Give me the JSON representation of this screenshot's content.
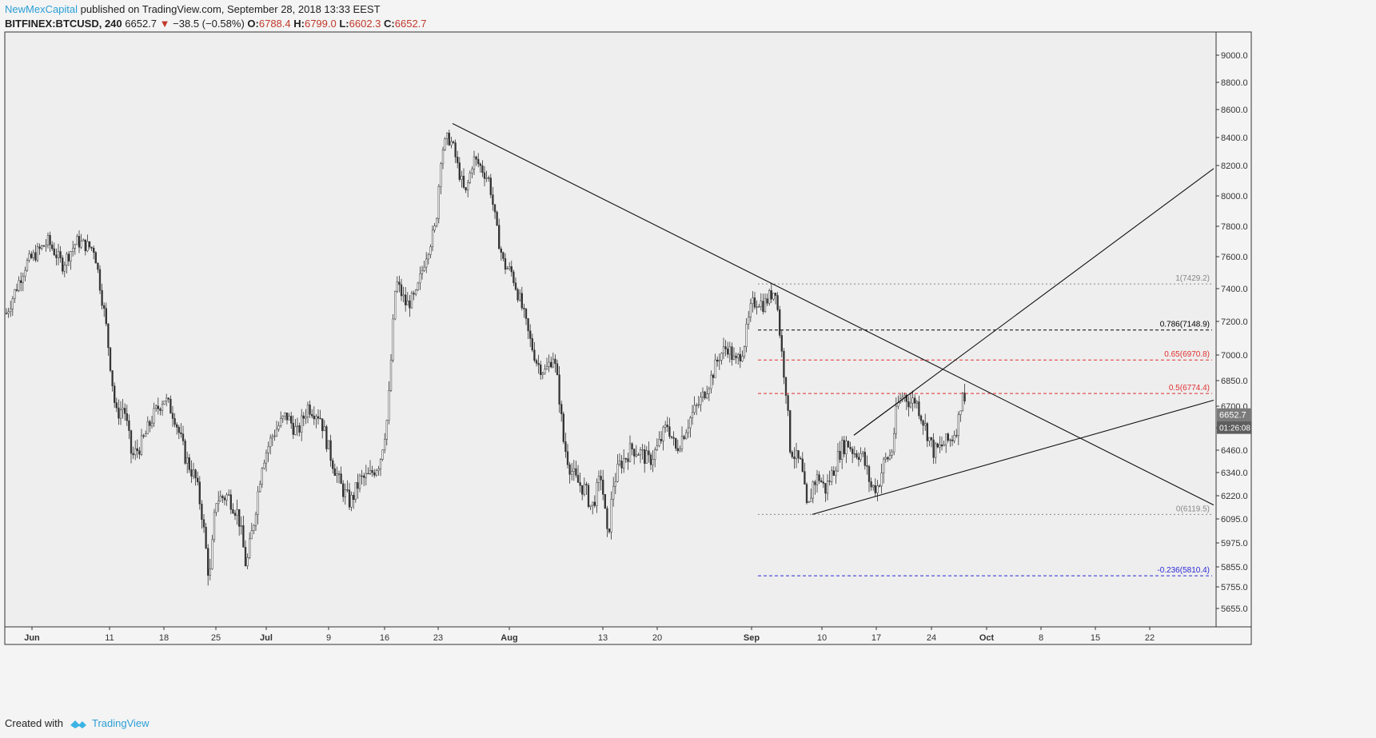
{
  "header": {
    "author": "NewMexCapital",
    "published": "published on TradingView.com, September 28, 2018 13:33 EEST",
    "symbol": "BITFINEX:BTCUSD, 240",
    "last": "6652.7",
    "down_icon": "triangle-down-icon",
    "change": "−38.5 (−0.58%)",
    "o_label": "O:",
    "o_val": "6788.4",
    "h_label": "H:",
    "h_val": "6799.0",
    "l_label": "L:",
    "l_val": "6602.3",
    "c_label": "C:",
    "c_val": "6652.7"
  },
  "footer": {
    "created": "Created with",
    "brand": "TradingView",
    "logo_icon": "tradingview-logo-icon"
  },
  "colors": {
    "bg": "#eeeeee",
    "candle": "#333333",
    "fib_red": "#e03030",
    "fib_blue": "#2a2ad8",
    "fib_gray": "#888888",
    "fib_black": "#000000",
    "price_box": "#7b7b7b"
  },
  "chart_data": {
    "type": "candlestick",
    "x_ticks": [
      "Jun",
      "11",
      "18",
      "25",
      "Jul",
      "9",
      "16",
      "23",
      "Aug",
      "13",
      "20",
      "Sep",
      "10",
      "17",
      "24",
      "Oct",
      "8",
      "15",
      "22"
    ],
    "y_ticks": [
      "9000.0",
      "8800.0",
      "8600.0",
      "8400.0",
      "8200.0",
      "8000.0",
      "7800.0",
      "7600.0",
      "7400.0",
      "7200.0",
      "7000.0",
      "6850.0",
      "6700.0",
      "6580.0",
      "6460.0",
      "6340.0",
      "6220.0",
      "6095.0",
      "5975.0",
      "5855.0",
      "5755.0",
      "5655.0"
    ],
    "last_price": "6652.7",
    "countdown": "01:26:08",
    "series": [
      {
        "path_x": [
          0,
          8,
          32,
          60,
          78,
          96,
          118,
          132,
          145,
          155,
          165,
          178,
          190,
          205,
          218,
          232,
          245,
          252,
          262,
          270,
          285,
          298,
          308,
          318,
          328,
          342,
          358,
          372,
          385,
          400,
          412,
          425,
          438,
          450,
          462,
          475,
          485,
          495,
          508,
          520,
          532,
          545,
          552,
          560,
          566,
          572,
          582,
          592,
          600,
          612,
          622,
          630,
          640,
          652,
          662,
          672,
          682,
          692,
          698,
          705,
          712,
          720,
          732,
          740,
          752,
          760,
          767,
          775,
          790,
          800,
          812,
          822,
          835,
          845,
          855,
          865,
          875,
          888,
          900,
          910,
          920,
          930,
          940,
          948,
          955,
          962,
          970,
          978,
          983,
          988,
          995,
          1002,
          1010,
          1016,
          1024,
          1032,
          1042,
          1052,
          1060,
          1068,
          1078,
          1090,
          1098,
          1106,
          1115,
          1122,
          1130,
          1138,
          1145,
          1152,
          1160,
          1168,
          1175,
          1182,
          1190,
          1198,
          1204,
          1208
        ],
        "close": [
          7000,
          7250,
          7550,
          7700,
          7550,
          7700,
          7650,
          7200,
          6650,
          6700,
          6420,
          6500,
          6630,
          6750,
          6650,
          6420,
          6300,
          6140,
          5780,
          6200,
          6220,
          6120,
          5850,
          6100,
          6400,
          6550,
          6650,
          6550,
          6700,
          6650,
          6450,
          6280,
          6180,
          6300,
          6320,
          6400,
          6650,
          7450,
          7300,
          7350,
          7600,
          7800,
          8300,
          8400,
          8350,
          8200,
          8000,
          8250,
          8200,
          8100,
          7750,
          7550,
          7500,
          7300,
          7100,
          6950,
          6900,
          7000,
          6820,
          6500,
          6380,
          6300,
          6250,
          6150,
          6330,
          5980,
          6280,
          6380,
          6470,
          6450,
          6400,
          6470,
          6600,
          6460,
          6550,
          6650,
          6720,
          6850,
          7000,
          7050,
          6950,
          7050,
          7300,
          7330,
          7300,
          7350,
          7400,
          7000,
          6800,
          6480,
          6420,
          6380,
          6120,
          6280,
          6320,
          6250,
          6350,
          6470,
          6500,
          6450,
          6440,
          6260,
          6270,
          6400,
          6440,
          6700,
          6770,
          6720,
          6740,
          6650,
          6550,
          6450,
          6470,
          6500,
          6520,
          6600,
          6800,
          6652.7
        ]
      }
    ],
    "drawings": {
      "down_trendline": {
        "start": [
          "Jul 24",
          8500
        ],
        "end": [
          "Oct 25",
          6170
        ]
      },
      "up_trendline": {
        "start": [
          "Sep 7",
          6119.5
        ],
        "end": [
          "Oct 25",
          6735
        ]
      },
      "channel_top": {
        "start": [
          "Sep 13",
          6540
        ],
        "end": [
          "Oct 25",
          8180
        ]
      },
      "wedge_top": {
        "start": [
          "Sep 13",
          6540
        ],
        "end": [
          "Sep 21",
          6790
        ]
      }
    },
    "fib": [
      {
        "label": "1(7429.2)",
        "value": 7429.2,
        "style": "gray-dotted"
      },
      {
        "label": "0.786(7148.9)",
        "value": 7148.9,
        "style": "black-dashed"
      },
      {
        "label": "0.65(6970.8)",
        "value": 6970.8,
        "style": "red-dashed"
      },
      {
        "label": "0.5(6774.4)",
        "value": 6774.4,
        "style": "red-dashed"
      },
      {
        "label": "0(6119.5)",
        "value": 6119.5,
        "style": "gray-dotted"
      },
      {
        "label": "-0.236(5810.4)",
        "value": 5810.4,
        "style": "blue-dashed"
      }
    ]
  }
}
